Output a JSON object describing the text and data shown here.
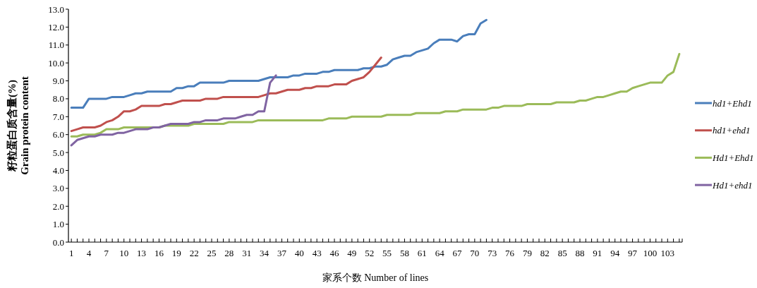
{
  "chart_data": {
    "type": "line",
    "ylabel": "籽粒蛋白质含量(%)\nGrain protein content",
    "xlabel": "家系个数  Number of lines",
    "categories": [
      "1",
      null,
      null,
      "4",
      null,
      null,
      "7",
      null,
      null,
      "10",
      null,
      null,
      "13",
      null,
      null,
      "16",
      null,
      null,
      "19",
      null,
      null,
      "22",
      null,
      null,
      "25",
      null,
      null,
      "28",
      null,
      null,
      "31",
      null,
      null,
      "34",
      null,
      null,
      "37",
      null,
      null,
      "40",
      null,
      null,
      "43",
      null,
      null,
      "46",
      null,
      null,
      "49",
      null,
      null,
      "52",
      null,
      null,
      "55",
      null,
      null,
      "58",
      null,
      null,
      "61",
      null,
      null,
      "64",
      null,
      null,
      "67",
      null,
      null,
      "70",
      null,
      null,
      "73",
      null,
      null,
      "76",
      null,
      null,
      "79",
      null,
      null,
      "82",
      null,
      null,
      "85",
      null,
      null,
      "88",
      null,
      null,
      "91",
      null,
      null,
      "94",
      null,
      null,
      "97",
      null,
      null,
      "100",
      null,
      null,
      "103",
      null,
      null
    ],
    "series": [
      {
        "name": "hd1+Ehd1",
        "color": "#4a7ebb",
        "values": [
          7.5,
          7.5,
          7.5,
          8.0,
          8.0,
          8.0,
          8.0,
          8.1,
          8.1,
          8.1,
          8.2,
          8.3,
          8.3,
          8.4,
          8.4,
          8.4,
          8.4,
          8.4,
          8.6,
          8.6,
          8.7,
          8.7,
          8.9,
          8.9,
          8.9,
          8.9,
          8.9,
          9.0,
          9.0,
          9.0,
          9.0,
          9.0,
          9.0,
          9.1,
          9.2,
          9.2,
          9.2,
          9.2,
          9.3,
          9.3,
          9.4,
          9.4,
          9.4,
          9.5,
          9.5,
          9.6,
          9.6,
          9.6,
          9.6,
          9.6,
          9.7,
          9.7,
          9.8,
          9.8,
          9.9,
          10.2,
          10.3,
          10.4,
          10.4,
          10.6,
          10.7,
          10.8,
          11.1,
          11.3,
          11.3,
          11.3,
          11.2,
          11.5,
          11.6,
          11.6,
          12.2,
          12.4,
          null,
          null,
          null,
          null,
          null,
          null,
          null,
          null,
          null,
          null,
          null,
          null,
          null,
          null,
          null,
          null,
          null,
          null,
          null,
          null,
          null,
          null,
          null,
          null,
          null,
          null,
          null,
          null,
          null,
          null,
          null,
          null,
          null
        ]
      },
      {
        "name": "hd1+ehd1",
        "color": "#c0504d",
        "values": [
          6.2,
          6.3,
          6.4,
          6.4,
          6.4,
          6.5,
          6.7,
          6.8,
          7.0,
          7.3,
          7.3,
          7.4,
          7.6,
          7.6,
          7.6,
          7.6,
          7.7,
          7.7,
          7.8,
          7.9,
          7.9,
          7.9,
          7.9,
          8.0,
          8.0,
          8.0,
          8.1,
          8.1,
          8.1,
          8.1,
          8.1,
          8.1,
          8.1,
          8.2,
          8.3,
          8.3,
          8.4,
          8.5,
          8.5,
          8.5,
          8.6,
          8.6,
          8.7,
          8.7,
          8.7,
          8.8,
          8.8,
          8.8,
          9.0,
          9.1,
          9.2,
          9.5,
          9.9,
          10.3,
          null,
          null,
          null,
          null,
          null,
          null,
          null,
          null,
          null,
          null,
          null,
          null,
          null,
          null,
          null,
          null,
          null,
          null,
          null,
          null,
          null,
          null,
          null,
          null,
          null,
          null,
          null,
          null,
          null,
          null,
          null,
          null,
          null,
          null,
          null,
          null,
          null,
          null,
          null,
          null,
          null,
          null,
          null,
          null,
          null,
          null,
          null,
          null,
          null,
          null,
          null
        ]
      },
      {
        "name": "Hd1+Ehd1",
        "color": "#9bbb59",
        "values": [
          5.9,
          5.9,
          6.0,
          6.0,
          6.0,
          6.1,
          6.3,
          6.3,
          6.3,
          6.4,
          6.4,
          6.4,
          6.4,
          6.4,
          6.4,
          6.4,
          6.5,
          6.5,
          6.5,
          6.5,
          6.5,
          6.6,
          6.6,
          6.6,
          6.6,
          6.6,
          6.6,
          6.7,
          6.7,
          6.7,
          6.7,
          6.7,
          6.8,
          6.8,
          6.8,
          6.8,
          6.8,
          6.8,
          6.8,
          6.8,
          6.8,
          6.8,
          6.8,
          6.8,
          6.9,
          6.9,
          6.9,
          6.9,
          7.0,
          7.0,
          7.0,
          7.0,
          7.0,
          7.0,
          7.1,
          7.1,
          7.1,
          7.1,
          7.1,
          7.2,
          7.2,
          7.2,
          7.2,
          7.2,
          7.3,
          7.3,
          7.3,
          7.4,
          7.4,
          7.4,
          7.4,
          7.4,
          7.5,
          7.5,
          7.6,
          7.6,
          7.6,
          7.6,
          7.7,
          7.7,
          7.7,
          7.7,
          7.7,
          7.8,
          7.8,
          7.8,
          7.8,
          7.9,
          7.9,
          8.0,
          8.1,
          8.1,
          8.2,
          8.3,
          8.4,
          8.4,
          8.6,
          8.7,
          8.8,
          8.9,
          8.9,
          8.9,
          9.3,
          9.5,
          10.5
        ]
      },
      {
        "name": "Hd1+ehd1",
        "color": "#8064a2",
        "values": [
          5.4,
          5.7,
          5.8,
          5.9,
          5.9,
          6.0,
          6.0,
          6.0,
          6.1,
          6.1,
          6.2,
          6.3,
          6.3,
          6.3,
          6.4,
          6.4,
          6.5,
          6.6,
          6.6,
          6.6,
          6.6,
          6.7,
          6.7,
          6.8,
          6.8,
          6.8,
          6.9,
          6.9,
          6.9,
          7.0,
          7.1,
          7.1,
          7.3,
          7.3,
          8.9,
          9.3,
          null,
          null,
          null,
          null,
          null,
          null,
          null,
          null,
          null,
          null,
          null,
          null,
          null,
          null,
          null,
          null,
          null,
          null,
          null,
          null,
          null,
          null,
          null,
          null,
          null,
          null,
          null,
          null,
          null,
          null,
          null,
          null,
          null,
          null,
          null,
          null,
          null,
          null,
          null,
          null,
          null,
          null,
          null,
          null,
          null,
          null,
          null,
          null,
          null,
          null,
          null,
          null,
          null,
          null,
          null,
          null,
          null,
          null,
          null,
          null,
          null,
          null,
          null,
          null,
          null,
          null,
          null,
          null,
          null
        ]
      }
    ],
    "ylim": [
      0,
      13
    ],
    "yticks": [
      {
        "value": 0,
        "label": "0.0"
      },
      {
        "value": 1,
        "label": "1.0"
      },
      {
        "value": 2,
        "label": "2.0"
      },
      {
        "value": 3,
        "label": "3.0"
      },
      {
        "value": 4,
        "label": "4.0"
      },
      {
        "value": 5,
        "label": "5.0"
      },
      {
        "value": 6,
        "label": "6.0"
      },
      {
        "value": 7,
        "label": "7.0"
      },
      {
        "value": 8,
        "label": "8.0"
      },
      {
        "value": 9,
        "label": "9.0"
      },
      {
        "value": 10,
        "label": "10.0"
      },
      {
        "value": 11,
        "label": "11.0"
      },
      {
        "value": 12,
        "label": "12.0"
      },
      {
        "value": 13,
        "label": "13.0"
      }
    ],
    "grid": false,
    "legend": "right",
    "marker": "none",
    "line_style": "solid"
  }
}
